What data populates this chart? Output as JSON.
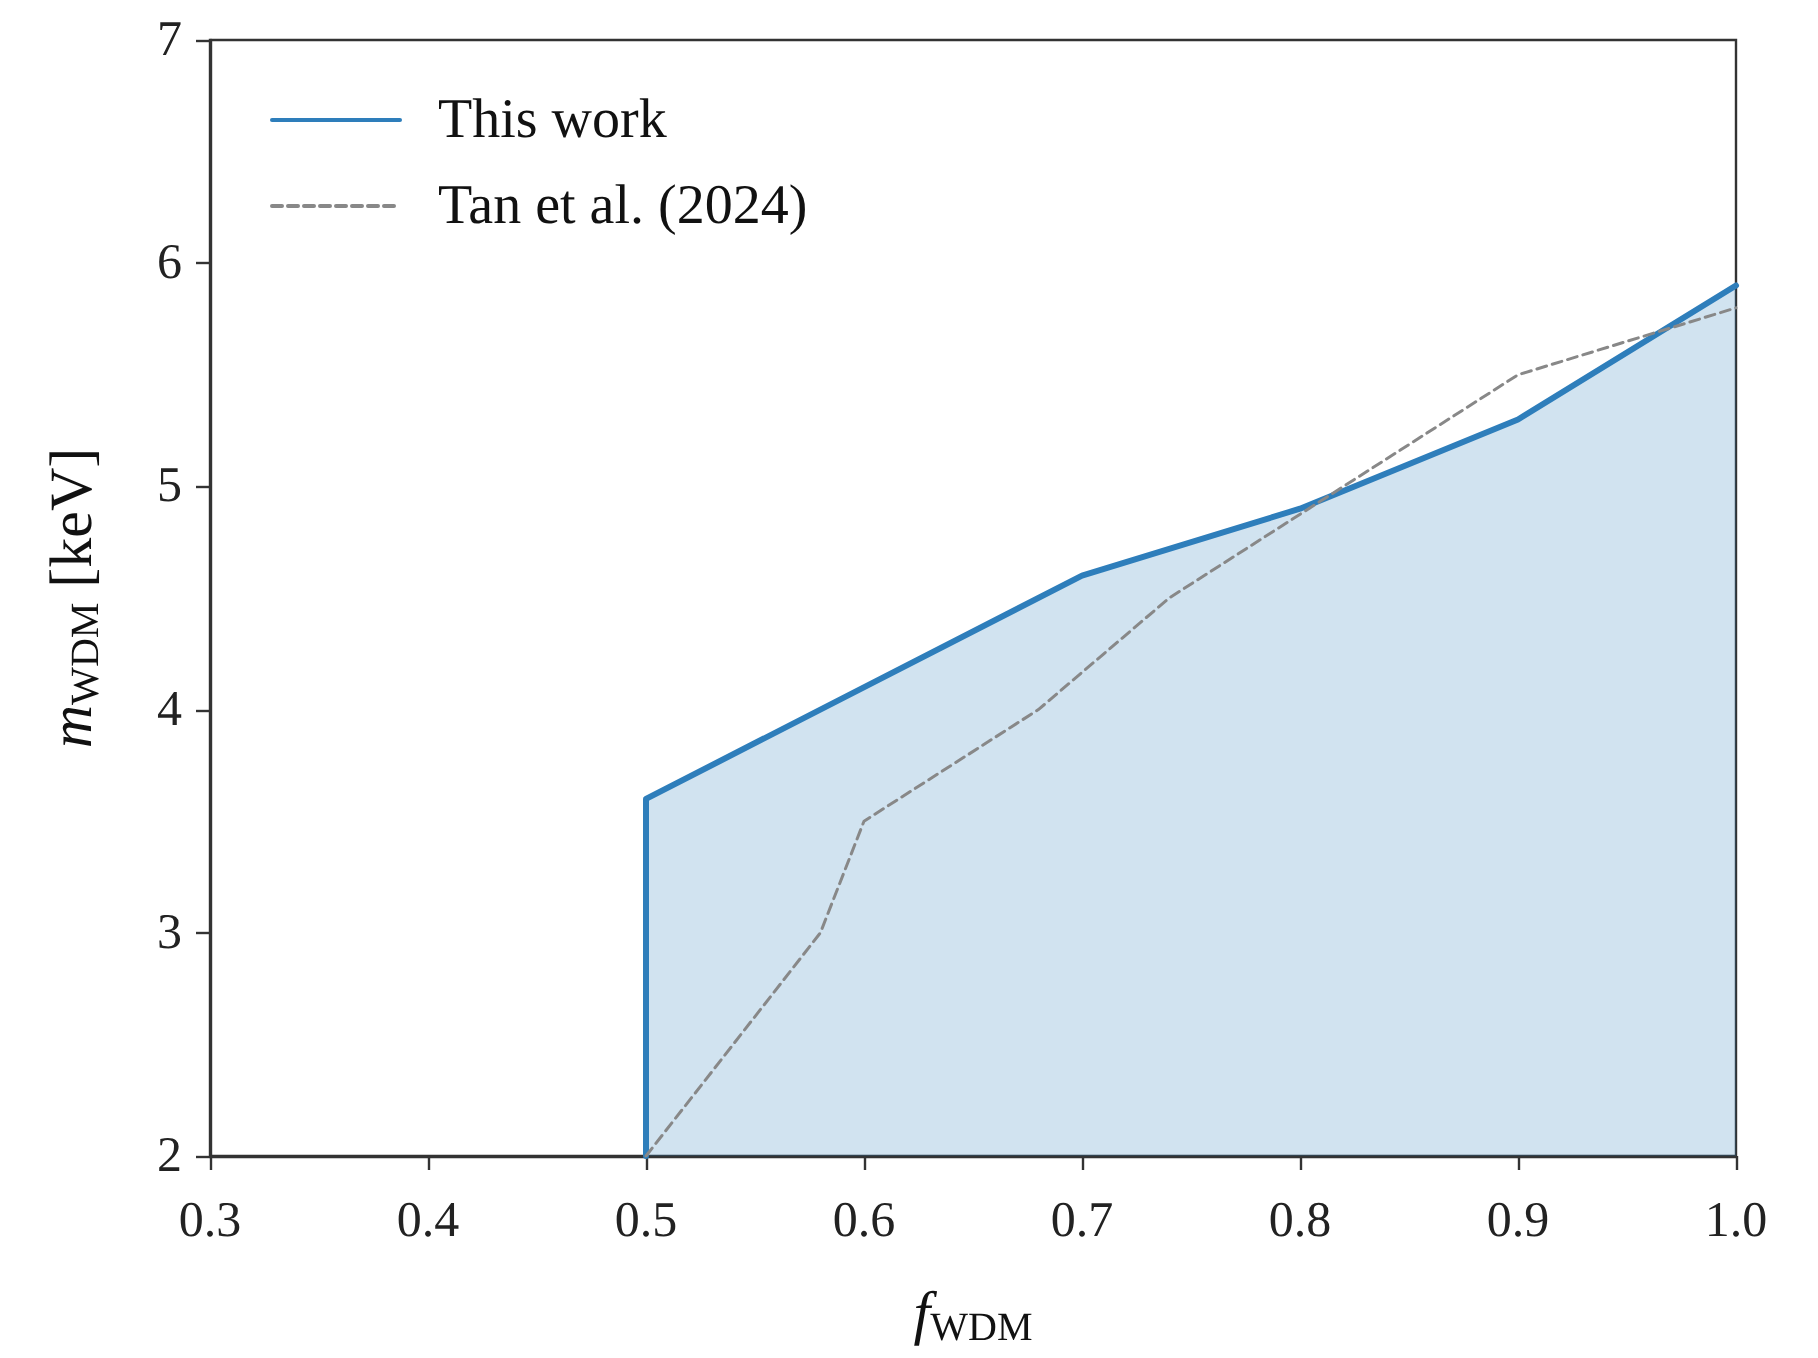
{
  "chart_data": {
    "type": "area",
    "xlabel": "f$_{WDM}$",
    "ylabel": "m$_{WDM}$ [keV]",
    "xlim": [
      0.3,
      1.0
    ],
    "xticks": [
      0.3,
      0.4,
      0.5,
      0.6,
      0.7,
      0.8,
      0.9,
      {
        "value": 1.0,
        "label": "1.0"
      }
    ],
    "ylim": [
      2,
      7
    ],
    "yticks": [
      2,
      3,
      4,
      5,
      6,
      7
    ],
    "grid": false,
    "legend": "top left",
    "marker": "none",
    "series": [
      {
        "name": "This work",
        "color": "#2e7ebb",
        "x": [
          0.5,
          0.5,
          0.7,
          0.8,
          0.9,
          1.0
        ],
        "values": [
          2,
          3.6,
          4.6,
          4.9,
          5.3,
          5.9
        ]
      },
      {
        "name": "Tan et al. (2024)",
        "type": "line",
        "line_style": "dashed",
        "color": "#888888",
        "x": [
          0.5,
          0.58,
          0.6,
          0.68,
          0.74,
          0.9,
          1.0
        ],
        "values": [
          2,
          3.0,
          3.5,
          4.0,
          4.5,
          5.5,
          5.8
        ]
      }
    ]
  }
}
